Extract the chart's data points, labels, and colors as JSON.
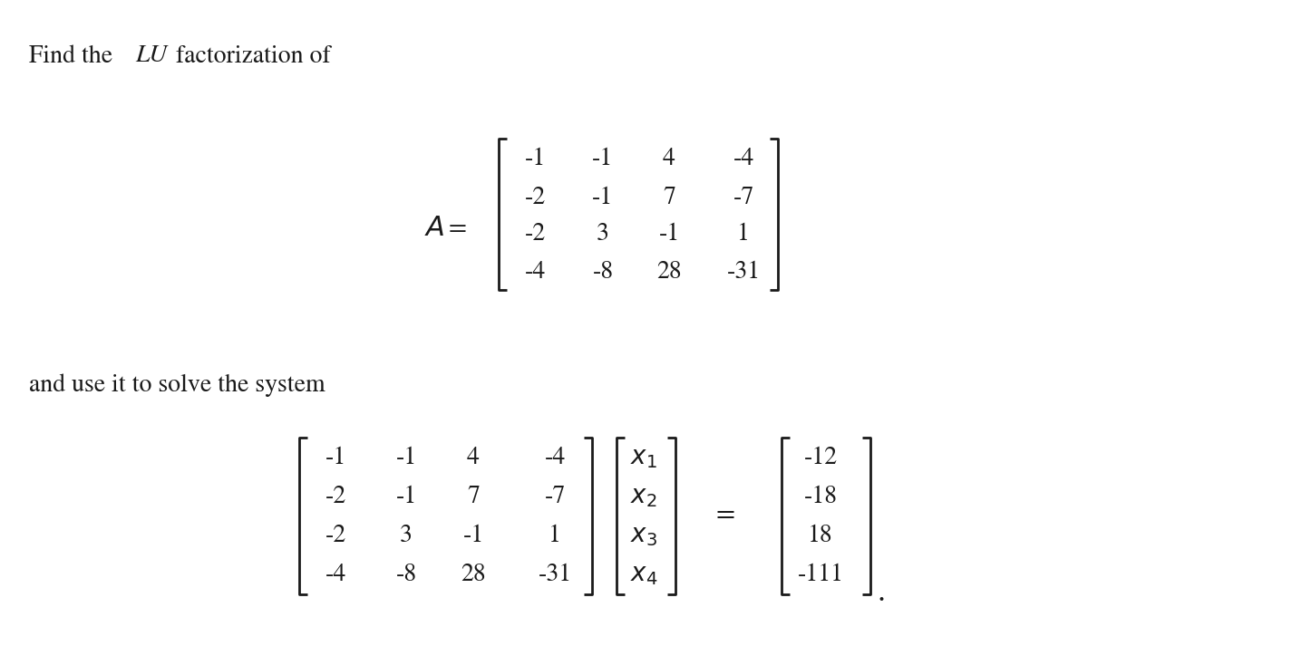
{
  "bg_color": "#ffffff",
  "text_color": "#1a1a1a",
  "matrix_A": [
    [
      "-1",
      "-1",
      "4",
      "-4"
    ],
    [
      "-2",
      "-1",
      "7",
      "-7"
    ],
    [
      "-2",
      "3",
      "-1",
      "1"
    ],
    [
      "-4",
      "-8",
      "28",
      "-31"
    ]
  ],
  "matrix_B": [
    [
      "-1",
      "-1",
      "4",
      "-4"
    ],
    [
      "-2",
      "-1",
      "7",
      "-7"
    ],
    [
      "-2",
      "3",
      "-1",
      "1"
    ],
    [
      "-4",
      "-8",
      "28",
      "-31"
    ]
  ],
  "x_vector": [
    "x_1",
    "x_2",
    "x_3",
    "x_4"
  ],
  "b_vector": [
    "-12",
    "-18",
    "18",
    "-111"
  ],
  "fig_width": 14.46,
  "fig_height": 7.34,
  "dpi": 100
}
